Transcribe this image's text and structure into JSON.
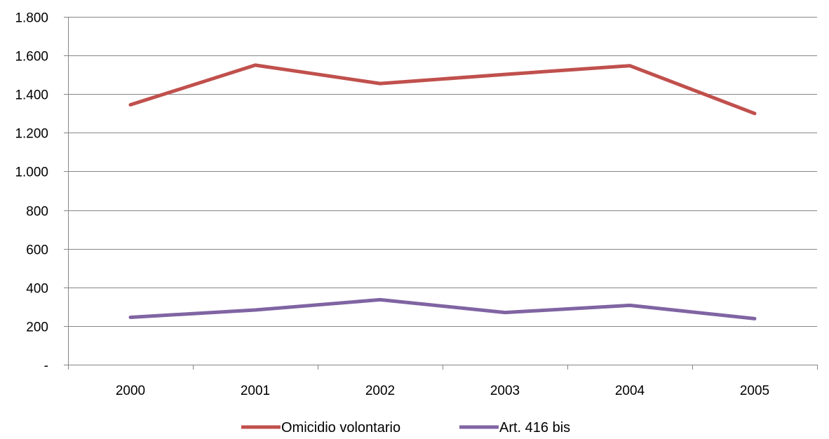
{
  "chart_data": {
    "type": "line",
    "title": "",
    "xlabel": "",
    "ylabel": "",
    "categories": [
      "2000",
      "2001",
      "2002",
      "2003",
      "2004",
      "2005"
    ],
    "ylim": [
      0,
      1800
    ],
    "yticks": [
      0,
      200,
      400,
      600,
      800,
      1000,
      1200,
      1400,
      1600,
      1800
    ],
    "ytick_labels": [
      "-",
      "200",
      "400",
      "600",
      "800",
      "1.000",
      "1.200",
      "1.400",
      "1.600",
      "1.800"
    ],
    "grid": true,
    "legend_position": "bottom",
    "series": [
      {
        "name": "Omicidio volontario",
        "color": "#c0504d",
        "values": [
          1345,
          1550,
          1455,
          1502,
          1547,
          1300
        ]
      },
      {
        "name": "Art. 416 bis",
        "color": "#8064a2",
        "values": [
          245,
          283,
          336,
          270,
          307,
          238
        ]
      }
    ]
  }
}
